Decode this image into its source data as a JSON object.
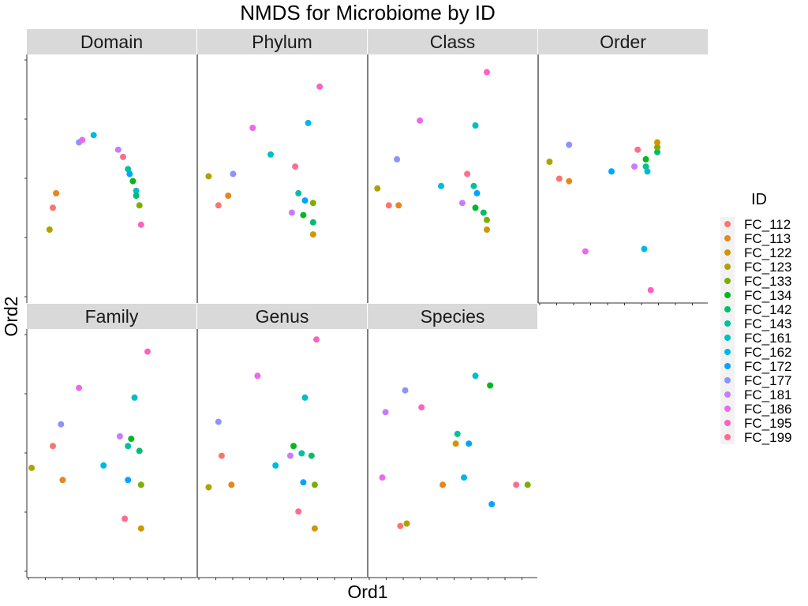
{
  "chart_data": {
    "type": "scatter",
    "title": "NMDS for Microbiome by ID",
    "xlabel": "Ord1",
    "ylabel": "Ord2",
    "grid": false,
    "legend": {
      "title": "ID",
      "position": "right"
    },
    "xlim": [
      0,
      1
    ],
    "ylim": [
      0,
      1
    ],
    "series": [
      {
        "name": "FC_112",
        "color": "#F8766D"
      },
      {
        "name": "FC_113",
        "color": "#E7861B"
      },
      {
        "name": "FC_122",
        "color": "#D09600"
      },
      {
        "name": "FC_123",
        "color": "#AEA200"
      },
      {
        "name": "FC_133",
        "color": "#7CAE00"
      },
      {
        "name": "FC_134",
        "color": "#00B81F"
      },
      {
        "name": "FC_142",
        "color": "#00BE6C"
      },
      {
        "name": "FC_143",
        "color": "#00C19B"
      },
      {
        "name": "FC_161",
        "color": "#00BFC4"
      },
      {
        "name": "FC_162",
        "color": "#00B8E5"
      },
      {
        "name": "FC_172",
        "color": "#00A5FF"
      },
      {
        "name": "FC_177",
        "color": "#8B93FF"
      },
      {
        "name": "FC_181",
        "color": "#C77CFF"
      },
      {
        "name": "FC_186",
        "color": "#ED68ED"
      },
      {
        "name": "FC_195",
        "color": "#FF61C3"
      },
      {
        "name": "FC_199",
        "color": "#FF6C91"
      }
    ],
    "facets": [
      {
        "label": "Domain",
        "points": [
          {
            "id": "FC_112",
            "x": 0.14,
            "y": 0.38
          },
          {
            "id": "FC_113",
            "x": 0.16,
            "y": 0.44
          },
          {
            "id": "FC_123",
            "x": 0.12,
            "y": 0.29
          },
          {
            "id": "FC_177",
            "x": 0.3,
            "y": 0.65
          },
          {
            "id": "FC_186",
            "x": 0.32,
            "y": 0.66
          },
          {
            "id": "FC_162",
            "x": 0.39,
            "y": 0.68
          },
          {
            "id": "FC_181",
            "x": 0.54,
            "y": 0.62
          },
          {
            "id": "FC_199",
            "x": 0.57,
            "y": 0.59
          },
          {
            "id": "FC_143",
            "x": 0.6,
            "y": 0.54
          },
          {
            "id": "FC_172",
            "x": 0.61,
            "y": 0.52
          },
          {
            "id": "FC_134",
            "x": 0.63,
            "y": 0.49
          },
          {
            "id": "FC_161",
            "x": 0.65,
            "y": 0.45
          },
          {
            "id": "FC_142",
            "x": 0.65,
            "y": 0.43
          },
          {
            "id": "FC_133",
            "x": 0.67,
            "y": 0.39
          },
          {
            "id": "FC_195",
            "x": 0.68,
            "y": 0.31
          }
        ]
      },
      {
        "label": "Phylum",
        "points": [
          {
            "id": "FC_123",
            "x": 0.05,
            "y": 0.51
          },
          {
            "id": "FC_112",
            "x": 0.11,
            "y": 0.39
          },
          {
            "id": "FC_113",
            "x": 0.17,
            "y": 0.43
          },
          {
            "id": "FC_177",
            "x": 0.2,
            "y": 0.52
          },
          {
            "id": "FC_186",
            "x": 0.32,
            "y": 0.71
          },
          {
            "id": "FC_161",
            "x": 0.43,
            "y": 0.6
          },
          {
            "id": "FC_199",
            "x": 0.58,
            "y": 0.55
          },
          {
            "id": "FC_181",
            "x": 0.56,
            "y": 0.36
          },
          {
            "id": "FC_143",
            "x": 0.6,
            "y": 0.44
          },
          {
            "id": "FC_172",
            "x": 0.64,
            "y": 0.41
          },
          {
            "id": "FC_134",
            "x": 0.63,
            "y": 0.35
          },
          {
            "id": "FC_133",
            "x": 0.69,
            "y": 0.4
          },
          {
            "id": "FC_142",
            "x": 0.69,
            "y": 0.32
          },
          {
            "id": "FC_122",
            "x": 0.69,
            "y": 0.27
          },
          {
            "id": "FC_162",
            "x": 0.66,
            "y": 0.73
          },
          {
            "id": "FC_195",
            "x": 0.73,
            "y": 0.88
          }
        ]
      },
      {
        "label": "Class",
        "points": [
          {
            "id": "FC_123",
            "x": 0.04,
            "y": 0.46
          },
          {
            "id": "FC_112",
            "x": 0.11,
            "y": 0.39
          },
          {
            "id": "FC_113",
            "x": 0.17,
            "y": 0.39
          },
          {
            "id": "FC_177",
            "x": 0.16,
            "y": 0.58
          },
          {
            "id": "FC_186",
            "x": 0.3,
            "y": 0.74
          },
          {
            "id": "FC_162",
            "x": 0.43,
            "y": 0.47
          },
          {
            "id": "FC_181",
            "x": 0.56,
            "y": 0.4
          },
          {
            "id": "FC_199",
            "x": 0.59,
            "y": 0.52
          },
          {
            "id": "FC_143",
            "x": 0.63,
            "y": 0.47
          },
          {
            "id": "FC_172",
            "x": 0.65,
            "y": 0.44
          },
          {
            "id": "FC_134",
            "x": 0.64,
            "y": 0.38
          },
          {
            "id": "FC_142",
            "x": 0.69,
            "y": 0.36
          },
          {
            "id": "FC_133",
            "x": 0.71,
            "y": 0.33
          },
          {
            "id": "FC_122",
            "x": 0.71,
            "y": 0.29
          },
          {
            "id": "FC_161",
            "x": 0.64,
            "y": 0.72
          },
          {
            "id": "FC_195",
            "x": 0.71,
            "y": 0.94
          }
        ]
      },
      {
        "label": "Order",
        "points": [
          {
            "id": "FC_123",
            "x": 0.05,
            "y": 0.57
          },
          {
            "id": "FC_112",
            "x": 0.11,
            "y": 0.5
          },
          {
            "id": "FC_113",
            "x": 0.17,
            "y": 0.49
          },
          {
            "id": "FC_177",
            "x": 0.17,
            "y": 0.64
          },
          {
            "id": "FC_172",
            "x": 0.43,
            "y": 0.53
          },
          {
            "id": "FC_181",
            "x": 0.57,
            "y": 0.55
          },
          {
            "id": "FC_199",
            "x": 0.59,
            "y": 0.62
          },
          {
            "id": "FC_143",
            "x": 0.64,
            "y": 0.55
          },
          {
            "id": "FC_134",
            "x": 0.64,
            "y": 0.58
          },
          {
            "id": "FC_161",
            "x": 0.65,
            "y": 0.53
          },
          {
            "id": "FC_142",
            "x": 0.71,
            "y": 0.61
          },
          {
            "id": "FC_133",
            "x": 0.71,
            "y": 0.63
          },
          {
            "id": "FC_122",
            "x": 0.71,
            "y": 0.65
          },
          {
            "id": "FC_186",
            "x": 0.27,
            "y": 0.2
          },
          {
            "id": "FC_162",
            "x": 0.63,
            "y": 0.21
          },
          {
            "id": "FC_195",
            "x": 0.67,
            "y": 0.04
          }
        ]
      },
      {
        "label": "Family",
        "points": [
          {
            "id": "FC_123",
            "x": 0.01,
            "y": 0.44
          },
          {
            "id": "FC_112",
            "x": 0.14,
            "y": 0.53
          },
          {
            "id": "FC_113",
            "x": 0.2,
            "y": 0.39
          },
          {
            "id": "FC_177",
            "x": 0.19,
            "y": 0.62
          },
          {
            "id": "FC_186",
            "x": 0.3,
            "y": 0.77
          },
          {
            "id": "FC_162",
            "x": 0.45,
            "y": 0.45
          },
          {
            "id": "FC_181",
            "x": 0.55,
            "y": 0.57
          },
          {
            "id": "FC_143",
            "x": 0.6,
            "y": 0.53
          },
          {
            "id": "FC_134",
            "x": 0.62,
            "y": 0.56
          },
          {
            "id": "FC_142",
            "x": 0.67,
            "y": 0.51
          },
          {
            "id": "FC_172",
            "x": 0.6,
            "y": 0.39
          },
          {
            "id": "FC_133",
            "x": 0.68,
            "y": 0.37
          },
          {
            "id": "FC_199",
            "x": 0.58,
            "y": 0.23
          },
          {
            "id": "FC_122",
            "x": 0.68,
            "y": 0.19
          },
          {
            "id": "FC_161",
            "x": 0.64,
            "y": 0.73
          },
          {
            "id": "FC_195",
            "x": 0.72,
            "y": 0.92
          }
        ]
      },
      {
        "label": "Genus",
        "points": [
          {
            "id": "FC_123",
            "x": 0.05,
            "y": 0.36
          },
          {
            "id": "FC_112",
            "x": 0.13,
            "y": 0.49
          },
          {
            "id": "FC_113",
            "x": 0.19,
            "y": 0.37
          },
          {
            "id": "FC_177",
            "x": 0.11,
            "y": 0.63
          },
          {
            "id": "FC_186",
            "x": 0.35,
            "y": 0.82
          },
          {
            "id": "FC_162",
            "x": 0.46,
            "y": 0.45
          },
          {
            "id": "FC_181",
            "x": 0.55,
            "y": 0.49
          },
          {
            "id": "FC_134",
            "x": 0.57,
            "y": 0.53
          },
          {
            "id": "FC_143",
            "x": 0.62,
            "y": 0.5
          },
          {
            "id": "FC_142",
            "x": 0.68,
            "y": 0.49
          },
          {
            "id": "FC_172",
            "x": 0.63,
            "y": 0.38
          },
          {
            "id": "FC_133",
            "x": 0.7,
            "y": 0.37
          },
          {
            "id": "FC_199",
            "x": 0.6,
            "y": 0.26
          },
          {
            "id": "FC_122",
            "x": 0.7,
            "y": 0.19
          },
          {
            "id": "FC_161",
            "x": 0.64,
            "y": 0.73
          },
          {
            "id": "FC_195",
            "x": 0.71,
            "y": 0.97
          }
        ]
      },
      {
        "label": "Species",
        "points": [
          {
            "id": "FC_186",
            "x": 0.07,
            "y": 0.4
          },
          {
            "id": "FC_181",
            "x": 0.09,
            "y": 0.67
          },
          {
            "id": "FC_177",
            "x": 0.21,
            "y": 0.76
          },
          {
            "id": "FC_112",
            "x": 0.18,
            "y": 0.2
          },
          {
            "id": "FC_123",
            "x": 0.22,
            "y": 0.21
          },
          {
            "id": "FC_195",
            "x": 0.31,
            "y": 0.69
          },
          {
            "id": "FC_113",
            "x": 0.44,
            "y": 0.37
          },
          {
            "id": "FC_122",
            "x": 0.52,
            "y": 0.54
          },
          {
            "id": "FC_143",
            "x": 0.53,
            "y": 0.58
          },
          {
            "id": "FC_172",
            "x": 0.6,
            "y": 0.54
          },
          {
            "id": "FC_162",
            "x": 0.57,
            "y": 0.4
          },
          {
            "id": "FC_161",
            "x": 0.64,
            "y": 0.82
          },
          {
            "id": "FC_134",
            "x": 0.73,
            "y": 0.78
          },
          {
            "id": "FC_172",
            "x": 0.74,
            "y": 0.29
          },
          {
            "id": "FC_199",
            "x": 0.89,
            "y": 0.37
          },
          {
            "id": "FC_133",
            "x": 0.96,
            "y": 0.37
          }
        ]
      }
    ]
  }
}
